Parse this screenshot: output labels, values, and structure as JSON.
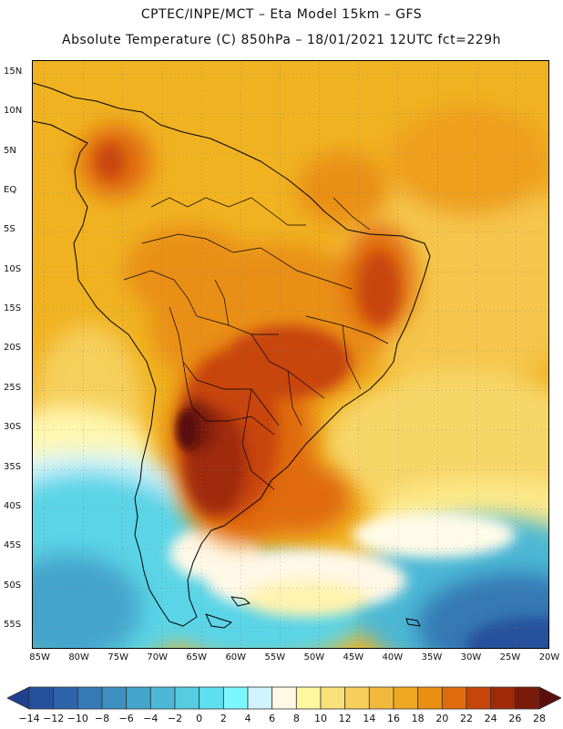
{
  "header": {
    "line1": "CPTEC/INPE/MCT –  Eta Model 15km – GFS",
    "line2": "Absolute Temperature (C) 850hPa – 18/01/2021 12UTC fct=229h"
  },
  "map": {
    "lat_labels": [
      "15N",
      "10N",
      "5N",
      "EQ",
      "5S",
      "10S",
      "15S",
      "20S",
      "25S",
      "30S",
      "35S",
      "40S",
      "45S",
      "50S",
      "55S"
    ],
    "lat_values": [
      15,
      10,
      5,
      0,
      -5,
      -10,
      -15,
      -20,
      -25,
      -30,
      -35,
      -40,
      -45,
      -50,
      -55
    ],
    "lon_labels": [
      "85W",
      "80W",
      "75W",
      "70W",
      "65W",
      "60W",
      "55W",
      "50W",
      "45W",
      "40W",
      "35W",
      "30W",
      "25W",
      "20W"
    ],
    "lon_values": [
      -85,
      -80,
      -75,
      -70,
      -65,
      -60,
      -55,
      -50,
      -45,
      -40,
      -35,
      -30,
      -25,
      -20
    ],
    "lat_range": [
      -58,
      16.5
    ],
    "lon_range": [
      -86,
      -20
    ]
  },
  "colorbar": {
    "labels": [
      "-14",
      "-12",
      "-10",
      "-8",
      "-6",
      "-4",
      "-2",
      "0",
      "2",
      "4",
      "6",
      "8",
      "10",
      "12",
      "14",
      "16",
      "18",
      "20",
      "22",
      "24",
      "26",
      "28"
    ],
    "colors": [
      "#1f3f8f",
      "#25519c",
      "#2d64aa",
      "#3579b5",
      "#3d8fc2",
      "#44a4cc",
      "#4cb8d6",
      "#55cce0",
      "#5edff0",
      "#7df7ff",
      "#cff4ff",
      "#fff8e6",
      "#fff6a0",
      "#fbe17a",
      "#f7cd5c",
      "#f2b93f",
      "#eea822",
      "#e98f12",
      "#e06b0c",
      "#c8450a",
      "#a02a08",
      "#7a1a0a",
      "#5b0f0c"
    ]
  }
}
